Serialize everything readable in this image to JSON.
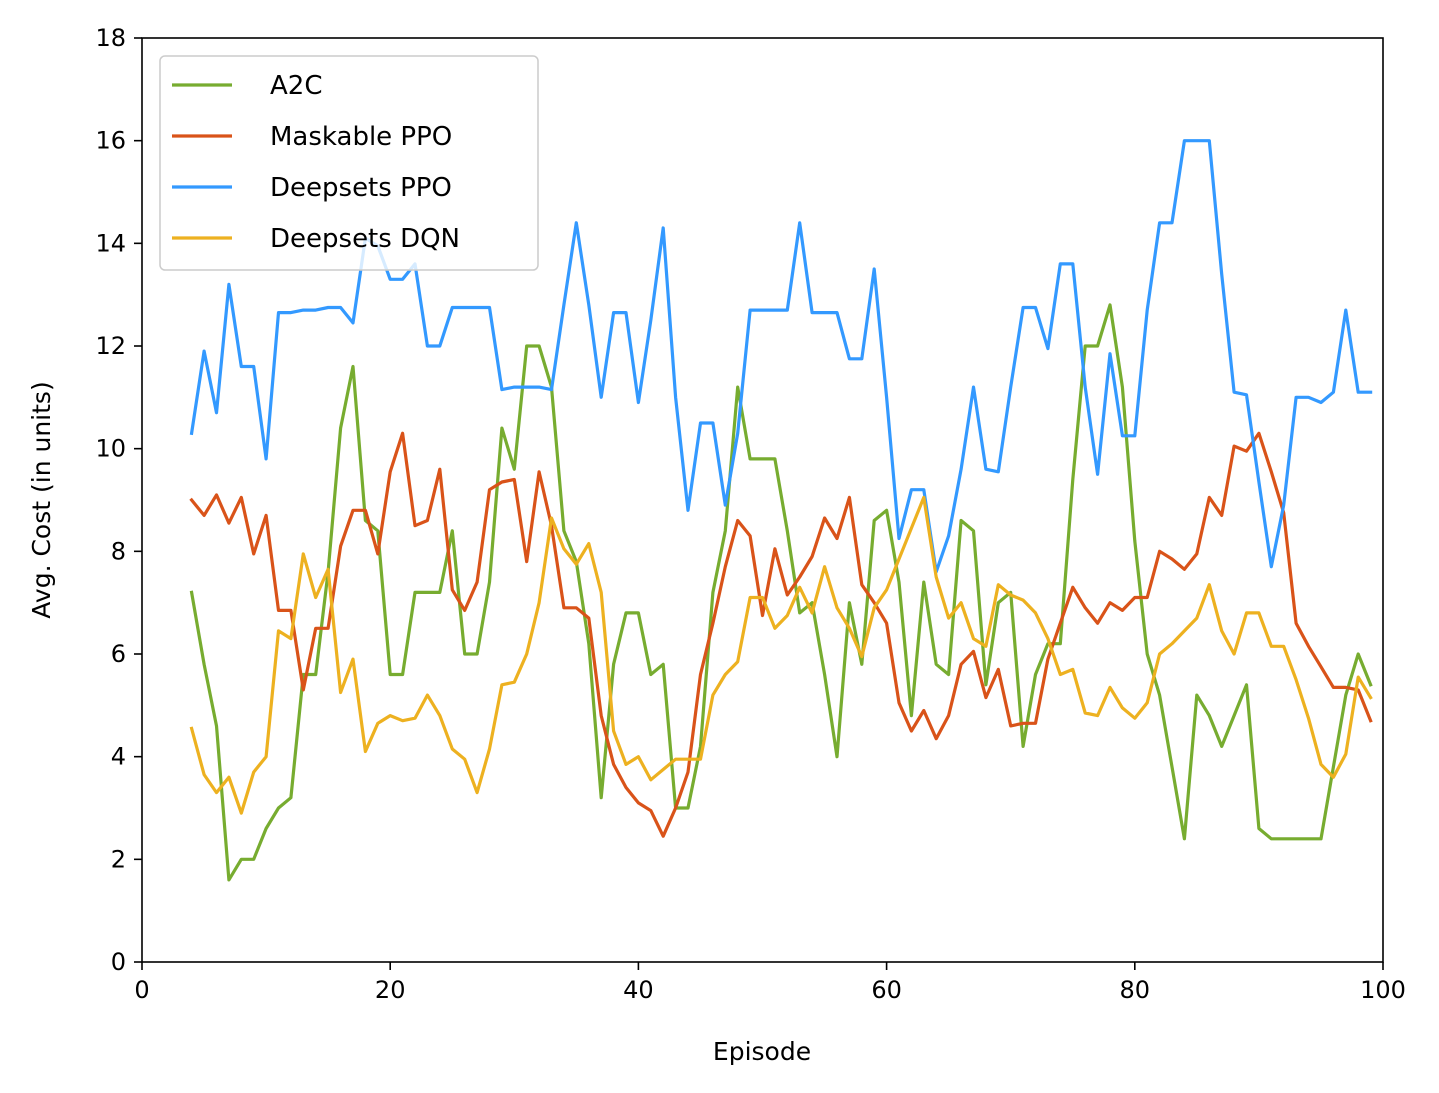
{
  "chart_data": {
    "type": "line",
    "xlabel": "Episode",
    "ylabel": "Avg. Cost (in units)",
    "xlim": [
      0,
      100
    ],
    "ylim": [
      0,
      18
    ],
    "xticks": [
      0,
      20,
      40,
      60,
      80,
      100
    ],
    "yticks": [
      0,
      2,
      4,
      6,
      8,
      10,
      12,
      14,
      16,
      18
    ],
    "grid": false,
    "legend_position": "top-left",
    "x": [
      4,
      5,
      6,
      7,
      8,
      9,
      10,
      11,
      12,
      13,
      14,
      15,
      16,
      17,
      18,
      19,
      20,
      21,
      22,
      23,
      24,
      25,
      26,
      27,
      28,
      29,
      30,
      31,
      32,
      33,
      34,
      35,
      36,
      37,
      38,
      39,
      40,
      41,
      42,
      43,
      44,
      45,
      46,
      47,
      48,
      49,
      50,
      51,
      52,
      53,
      54,
      55,
      56,
      57,
      58,
      59,
      60,
      61,
      62,
      63,
      64,
      65,
      66,
      67,
      68,
      69,
      70,
      71,
      72,
      73,
      74,
      75,
      76,
      77,
      78,
      79,
      80,
      81,
      82,
      83,
      84,
      85,
      86,
      87,
      88,
      89,
      90,
      91,
      92,
      93,
      94,
      95,
      96,
      97,
      98,
      99
    ],
    "series": [
      {
        "name": "A2C",
        "color": "#77ac30",
        "values": [
          7.2,
          5.8,
          4.6,
          1.6,
          2.0,
          2.0,
          2.6,
          3.0,
          3.2,
          5.6,
          5.6,
          7.6,
          10.4,
          11.6,
          8.6,
          8.4,
          5.6,
          5.6,
          7.2,
          7.2,
          7.2,
          8.4,
          6.0,
          6.0,
          7.4,
          10.4,
          9.6,
          12.0,
          12.0,
          11.2,
          8.4,
          7.8,
          6.2,
          3.2,
          5.8,
          6.8,
          6.8,
          5.6,
          5.8,
          3.0,
          3.0,
          4.2,
          7.2,
          8.4,
          11.2,
          9.8,
          9.8,
          9.8,
          8.4,
          6.8,
          7.0,
          5.6,
          4.0,
          7.0,
          5.8,
          8.6,
          8.8,
          7.4,
          4.8,
          7.4,
          5.8,
          5.6,
          8.6,
          8.4,
          5.4,
          7.0,
          7.2,
          4.2,
          5.6,
          6.2,
          6.2,
          9.4,
          12.0,
          12.0,
          12.8,
          11.2,
          8.2,
          6.0,
          5.2,
          3.8,
          2.4,
          5.2,
          4.8,
          4.2,
          4.8,
          5.4,
          2.6,
          2.4,
          2.4,
          2.4,
          2.4,
          2.4,
          3.8,
          5.2,
          6.0,
          5.4
        ]
      },
      {
        "name": "Maskable PPO",
        "color": "#d95319",
        "values": [
          9.0,
          8.7,
          9.1,
          8.55,
          9.05,
          7.95,
          8.7,
          6.85,
          6.85,
          5.3,
          6.5,
          6.5,
          8.1,
          8.8,
          8.8,
          7.95,
          9.55,
          10.3,
          8.5,
          8.6,
          9.6,
          7.25,
          6.85,
          7.4,
          9.2,
          9.35,
          9.4,
          7.8,
          9.55,
          8.5,
          6.9,
          6.9,
          6.7,
          4.8,
          3.85,
          3.4,
          3.1,
          2.95,
          2.45,
          3.0,
          3.7,
          5.6,
          6.6,
          7.7,
          8.6,
          8.3,
          6.75,
          8.05,
          7.15,
          7.5,
          7.9,
          8.65,
          8.25,
          9.05,
          7.35,
          7.0,
          6.6,
          5.05,
          4.5,
          4.9,
          4.35,
          4.8,
          5.8,
          6.05,
          5.15,
          5.7,
          4.6,
          4.65,
          4.65,
          5.9,
          6.6,
          7.3,
          6.9,
          6.6,
          7.0,
          6.85,
          7.1,
          7.1,
          8.0,
          7.85,
          7.65,
          7.95,
          9.05,
          8.7,
          10.05,
          9.95,
          10.3,
          9.55,
          8.75,
          6.6,
          6.15,
          5.75,
          5.35,
          5.35,
          5.3,
          4.7
        ]
      },
      {
        "name": "Deepsets PPO",
        "color": "#3399ff",
        "values": [
          10.3,
          11.9,
          10.7,
          13.2,
          11.6,
          11.6,
          9.8,
          12.65,
          12.65,
          12.7,
          12.7,
          12.75,
          12.75,
          12.45,
          14.1,
          13.95,
          13.3,
          13.3,
          13.6,
          12.0,
          12.0,
          12.75,
          12.75,
          12.75,
          12.75,
          11.15,
          11.2,
          11.2,
          11.2,
          11.15,
          12.8,
          14.4,
          12.8,
          11.0,
          12.65,
          12.65,
          10.9,
          12.5,
          14.3,
          11.0,
          8.8,
          10.5,
          10.5,
          8.9,
          10.3,
          12.7,
          12.7,
          12.7,
          12.7,
          14.4,
          12.65,
          12.65,
          12.65,
          11.75,
          11.75,
          13.5,
          11.0,
          8.25,
          9.2,
          9.2,
          7.6,
          8.3,
          9.6,
          11.2,
          9.6,
          9.55,
          11.2,
          12.75,
          12.75,
          11.95,
          13.6,
          13.6,
          11.2,
          9.5,
          11.85,
          10.25,
          10.25,
          12.7,
          14.4,
          14.4,
          16.0,
          16.0,
          16.0,
          13.4,
          11.1,
          11.05,
          9.35,
          7.7,
          8.9,
          11.0,
          11.0,
          10.9,
          11.1,
          12.7,
          11.1,
          11.1
        ]
      },
      {
        "name": "Deepsets DQN",
        "color": "#edb120",
        "values": [
          4.55,
          3.65,
          3.3,
          3.6,
          2.9,
          3.7,
          4.0,
          6.45,
          6.3,
          7.95,
          7.1,
          7.65,
          5.25,
          5.9,
          4.1,
          4.65,
          4.8,
          4.7,
          4.75,
          5.2,
          4.8,
          4.15,
          3.95,
          3.3,
          4.15,
          5.4,
          5.45,
          6.0,
          7.0,
          8.65,
          8.05,
          7.75,
          8.15,
          7.2,
          4.5,
          3.85,
          4.0,
          3.55,
          3.75,
          3.95,
          3.95,
          3.95,
          5.2,
          5.6,
          5.85,
          7.1,
          7.1,
          6.5,
          6.75,
          7.3,
          6.8,
          7.7,
          6.9,
          6.5,
          5.95,
          6.9,
          7.25,
          7.85,
          8.45,
          9.05,
          7.5,
          6.7,
          7.0,
          6.3,
          6.15,
          7.35,
          7.15,
          7.05,
          6.8,
          6.3,
          5.6,
          5.7,
          4.85,
          4.8,
          5.35,
          4.95,
          4.75,
          5.05,
          6.0,
          6.2,
          6.45,
          6.7,
          7.35,
          6.45,
          6.0,
          6.8,
          6.8,
          6.15,
          6.15,
          5.5,
          4.75,
          3.85,
          3.6,
          4.05,
          5.55,
          5.15
        ]
      }
    ]
  }
}
